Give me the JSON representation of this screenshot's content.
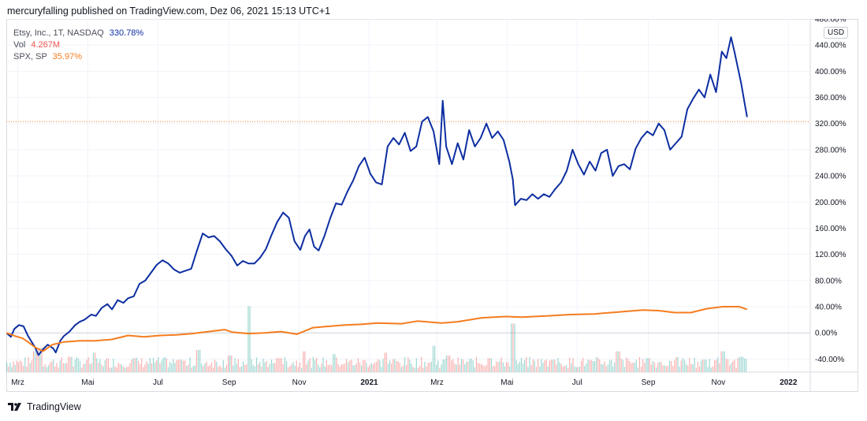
{
  "header": {
    "attribution": "mercuryfalling published on TradingView.com, Dez 06, 2021 15:13 UTC+1"
  },
  "brand": {
    "name": "TradingView",
    "icon": "tradingview-logo-icon"
  },
  "legend": [
    {
      "name": "Etsy, Inc., 1T, NASDAQ",
      "value": "330.78%",
      "color": "#0d2ea1"
    },
    {
      "name": "Vol",
      "value": "4.267M",
      "color": "#ef5350"
    },
    {
      "name": "SPX, SP",
      "value": "35.97%",
      "color": "#f57c1f"
    }
  ],
  "currency_badge": "USD",
  "chart_data": {
    "type": "line",
    "title": "",
    "xlabel": "",
    "ylabel": "",
    "y_scale": "percent",
    "ylim": [
      -60,
      480
    ],
    "y_ticks": [
      -40,
      0,
      40,
      80,
      120,
      160,
      200,
      240,
      280,
      320,
      360,
      400,
      440,
      480
    ],
    "y_tick_labels": [
      "-40.00%",
      "0.00%",
      "40.00%",
      "80.00%",
      "120.00%",
      "160.00%",
      "200.00%",
      "240.00%",
      "280.00%",
      "320.00%",
      "360.00%",
      "400.00%",
      "440.00%",
      "480.00%"
    ],
    "xlim": [
      "2020-02-20",
      "2022-01-20"
    ],
    "x_ticks": [
      {
        "date": "2020-03-01",
        "label": "Mrz"
      },
      {
        "date": "2020-05-01",
        "label": "Mai"
      },
      {
        "date": "2020-07-01",
        "label": "Jul"
      },
      {
        "date": "2020-09-01",
        "label": "Sep"
      },
      {
        "date": "2020-11-01",
        "label": "Nov"
      },
      {
        "date": "2021-01-01",
        "label": "2021"
      },
      {
        "date": "2021-03-01",
        "label": "Mrz"
      },
      {
        "date": "2021-05-01",
        "label": "Mai"
      },
      {
        "date": "2021-07-01",
        "label": "Jul"
      },
      {
        "date": "2021-09-01",
        "label": "Sep"
      },
      {
        "date": "2021-11-01",
        "label": "Nov"
      },
      {
        "date": "2022-01-01",
        "label": "2022"
      }
    ],
    "grid": true,
    "last_value_line": 323,
    "series": [
      {
        "name": "Etsy, Inc., 1T, NASDAQ",
        "color": "#0d2ea1",
        "points": [
          [
            "2020-02-20",
            0
          ],
          [
            "2020-02-24",
            -6
          ],
          [
            "2020-02-27",
            6
          ],
          [
            "2020-03-02",
            12
          ],
          [
            "2020-03-06",
            10
          ],
          [
            "2020-03-10",
            -5
          ],
          [
            "2020-03-16",
            -22
          ],
          [
            "2020-03-19",
            -34
          ],
          [
            "2020-03-23",
            -25
          ],
          [
            "2020-03-27",
            -18
          ],
          [
            "2020-04-01",
            -24
          ],
          [
            "2020-04-03",
            -30
          ],
          [
            "2020-04-07",
            -12
          ],
          [
            "2020-04-10",
            -5
          ],
          [
            "2020-04-15",
            2
          ],
          [
            "2020-04-20",
            12
          ],
          [
            "2020-04-24",
            17
          ],
          [
            "2020-04-28",
            20
          ],
          [
            "2020-05-04",
            28
          ],
          [
            "2020-05-08",
            26
          ],
          [
            "2020-05-13",
            38
          ],
          [
            "2020-05-18",
            44
          ],
          [
            "2020-05-22",
            36
          ],
          [
            "2020-05-27",
            50
          ],
          [
            "2020-06-01",
            46
          ],
          [
            "2020-06-05",
            53
          ],
          [
            "2020-06-10",
            56
          ],
          [
            "2020-06-15",
            75
          ],
          [
            "2020-06-20",
            80
          ],
          [
            "2020-06-25",
            92
          ],
          [
            "2020-06-30",
            104
          ],
          [
            "2020-07-05",
            111
          ],
          [
            "2020-07-10",
            106
          ],
          [
            "2020-07-15",
            97
          ],
          [
            "2020-07-20",
            92
          ],
          [
            "2020-07-25",
            95
          ],
          [
            "2020-07-30",
            98
          ],
          [
            "2020-08-04",
            126
          ],
          [
            "2020-08-09",
            152
          ],
          [
            "2020-08-14",
            146
          ],
          [
            "2020-08-19",
            148
          ],
          [
            "2020-08-24",
            140
          ],
          [
            "2020-08-29",
            128
          ],
          [
            "2020-09-03",
            118
          ],
          [
            "2020-09-08",
            103
          ],
          [
            "2020-09-13",
            110
          ],
          [
            "2020-09-18",
            106
          ],
          [
            "2020-09-23",
            106
          ],
          [
            "2020-09-28",
            115
          ],
          [
            "2020-10-03",
            128
          ],
          [
            "2020-10-08",
            150
          ],
          [
            "2020-10-13",
            170
          ],
          [
            "2020-10-18",
            184
          ],
          [
            "2020-10-23",
            176
          ],
          [
            "2020-10-28",
            140
          ],
          [
            "2020-11-02",
            127
          ],
          [
            "2020-11-06",
            148
          ],
          [
            "2020-11-10",
            158
          ],
          [
            "2020-11-14",
            132
          ],
          [
            "2020-11-18",
            126
          ],
          [
            "2020-11-23",
            148
          ],
          [
            "2020-11-28",
            175
          ],
          [
            "2020-12-03",
            198
          ],
          [
            "2020-12-08",
            196
          ],
          [
            "2020-12-13",
            216
          ],
          [
            "2020-12-18",
            233
          ],
          [
            "2020-12-23",
            255
          ],
          [
            "2020-12-28",
            268
          ],
          [
            "2021-01-02",
            243
          ],
          [
            "2021-01-07",
            230
          ],
          [
            "2021-01-12",
            227
          ],
          [
            "2021-01-17",
            285
          ],
          [
            "2021-01-22",
            298
          ],
          [
            "2021-01-27",
            288
          ],
          [
            "2021-02-01",
            306
          ],
          [
            "2021-02-06",
            278
          ],
          [
            "2021-02-11",
            285
          ],
          [
            "2021-02-16",
            323
          ],
          [
            "2021-02-21",
            330
          ],
          [
            "2021-02-26",
            308
          ],
          [
            "2021-03-03",
            258
          ],
          [
            "2021-03-06",
            355
          ],
          [
            "2021-03-09",
            285
          ],
          [
            "2021-03-14",
            258
          ],
          [
            "2021-03-19",
            290
          ],
          [
            "2021-03-24",
            265
          ],
          [
            "2021-03-29",
            310
          ],
          [
            "2021-04-03",
            285
          ],
          [
            "2021-04-08",
            298
          ],
          [
            "2021-04-13",
            320
          ],
          [
            "2021-04-18",
            298
          ],
          [
            "2021-04-23",
            308
          ],
          [
            "2021-04-28",
            295
          ],
          [
            "2021-05-03",
            262
          ],
          [
            "2021-05-06",
            235
          ],
          [
            "2021-05-08",
            195
          ],
          [
            "2021-05-13",
            205
          ],
          [
            "2021-05-18",
            203
          ],
          [
            "2021-05-23",
            212
          ],
          [
            "2021-05-28",
            205
          ],
          [
            "2021-06-02",
            212
          ],
          [
            "2021-06-07",
            208
          ],
          [
            "2021-06-12",
            220
          ],
          [
            "2021-06-17",
            230
          ],
          [
            "2021-06-22",
            248
          ],
          [
            "2021-06-27",
            280
          ],
          [
            "2021-07-02",
            258
          ],
          [
            "2021-07-07",
            242
          ],
          [
            "2021-07-12",
            262
          ],
          [
            "2021-07-17",
            248
          ],
          [
            "2021-07-22",
            275
          ],
          [
            "2021-07-27",
            280
          ],
          [
            "2021-08-01",
            240
          ],
          [
            "2021-08-06",
            255
          ],
          [
            "2021-08-11",
            258
          ],
          [
            "2021-08-16",
            250
          ],
          [
            "2021-08-21",
            282
          ],
          [
            "2021-08-26",
            298
          ],
          [
            "2021-08-31",
            308
          ],
          [
            "2021-09-05",
            302
          ],
          [
            "2021-09-10",
            320
          ],
          [
            "2021-09-15",
            310
          ],
          [
            "2021-09-20",
            280
          ],
          [
            "2021-09-25",
            290
          ],
          [
            "2021-09-30",
            300
          ],
          [
            "2021-10-05",
            342
          ],
          [
            "2021-10-10",
            358
          ],
          [
            "2021-10-15",
            372
          ],
          [
            "2021-10-20",
            360
          ],
          [
            "2021-10-25",
            395
          ],
          [
            "2021-10-30",
            368
          ],
          [
            "2021-11-04",
            430
          ],
          [
            "2021-11-08",
            420
          ],
          [
            "2021-11-12",
            452
          ],
          [
            "2021-11-15",
            430
          ],
          [
            "2021-11-18",
            405
          ],
          [
            "2021-11-21",
            380
          ],
          [
            "2021-11-24",
            350
          ],
          [
            "2021-11-26",
            330
          ]
        ]
      },
      {
        "name": "SPX, SP",
        "color": "#f57c1f",
        "points": [
          [
            "2020-02-20",
            0
          ],
          [
            "2020-02-28",
            -5
          ],
          [
            "2020-03-05",
            -8
          ],
          [
            "2020-03-10",
            -14
          ],
          [
            "2020-03-16",
            -22
          ],
          [
            "2020-03-23",
            -28
          ],
          [
            "2020-03-31",
            -18
          ],
          [
            "2020-04-10",
            -14
          ],
          [
            "2020-04-24",
            -12
          ],
          [
            "2020-05-08",
            -12
          ],
          [
            "2020-05-22",
            -10
          ],
          [
            "2020-06-05",
            -4
          ],
          [
            "2020-06-19",
            -6
          ],
          [
            "2020-07-03",
            -4
          ],
          [
            "2020-07-17",
            -3
          ],
          [
            "2020-07-31",
            -1
          ],
          [
            "2020-08-14",
            2
          ],
          [
            "2020-08-28",
            5
          ],
          [
            "2020-09-04",
            1
          ],
          [
            "2020-09-18",
            -1
          ],
          [
            "2020-10-02",
            0
          ],
          [
            "2020-10-16",
            2
          ],
          [
            "2020-10-30",
            -2
          ],
          [
            "2020-11-13",
            8
          ],
          [
            "2020-11-27",
            10
          ],
          [
            "2020-12-11",
            12
          ],
          [
            "2020-12-25",
            13
          ],
          [
            "2021-01-08",
            15
          ],
          [
            "2021-01-29",
            14
          ],
          [
            "2021-02-12",
            18
          ],
          [
            "2021-03-05",
            15
          ],
          [
            "2021-03-19",
            17
          ],
          [
            "2021-04-09",
            23
          ],
          [
            "2021-04-30",
            25
          ],
          [
            "2021-05-14",
            24
          ],
          [
            "2021-06-04",
            26
          ],
          [
            "2021-06-25",
            28
          ],
          [
            "2021-07-16",
            29
          ],
          [
            "2021-08-06",
            32
          ],
          [
            "2021-08-27",
            35
          ],
          [
            "2021-09-10",
            34
          ],
          [
            "2021-09-24",
            31
          ],
          [
            "2021-10-08",
            31
          ],
          [
            "2021-10-22",
            37
          ],
          [
            "2021-11-05",
            40
          ],
          [
            "2021-11-19",
            40
          ],
          [
            "2021-11-26",
            36
          ]
        ]
      },
      {
        "name": "Vol",
        "color": "#ef5350",
        "style": "histogram",
        "unit_note": "relative bar height 0-1",
        "points": [
          [
            "2020-03-16",
            0.3
          ],
          [
            "2020-03-20",
            0.35
          ],
          [
            "2020-04-15",
            0.22
          ],
          [
            "2020-05-06",
            0.28
          ],
          [
            "2020-06-10",
            0.2
          ],
          [
            "2020-07-20",
            0.18
          ],
          [
            "2020-08-05",
            0.32
          ],
          [
            "2020-09-01",
            0.24
          ],
          [
            "2020-09-18",
            0.95
          ],
          [
            "2020-10-15",
            0.2
          ],
          [
            "2020-11-05",
            0.3
          ],
          [
            "2020-12-01",
            0.26
          ],
          [
            "2021-01-15",
            0.28
          ],
          [
            "2021-02-26",
            0.38
          ],
          [
            "2021-03-10",
            0.24
          ],
          [
            "2021-04-15",
            0.2
          ],
          [
            "2021-05-06",
            0.7
          ],
          [
            "2021-06-10",
            0.18
          ],
          [
            "2021-07-15",
            0.16
          ],
          [
            "2021-08-05",
            0.3
          ],
          [
            "2021-08-31",
            0.2
          ],
          [
            "2021-09-20",
            0.16
          ],
          [
            "2021-10-20",
            0.18
          ],
          [
            "2021-11-04",
            0.3
          ],
          [
            "2021-11-20",
            0.22
          ]
        ]
      }
    ]
  }
}
